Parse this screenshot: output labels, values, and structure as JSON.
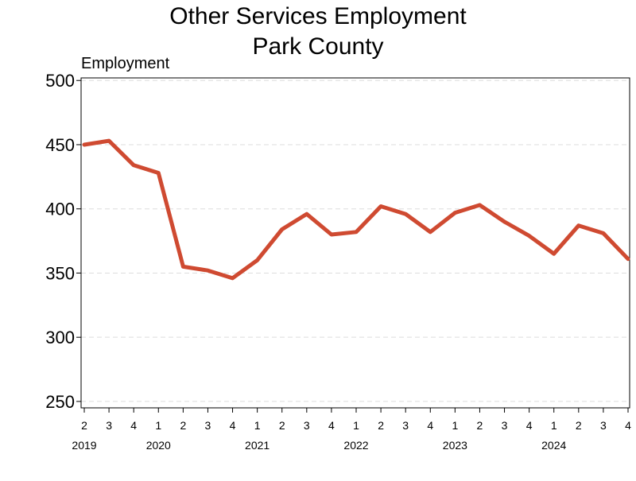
{
  "chart_data": {
    "type": "line",
    "title": "Other Services Employment",
    "subtitle": "Park County",
    "ylabel": "Employment",
    "xlabel": "",
    "ylim": [
      245,
      502
    ],
    "yticks": [
      250,
      300,
      350,
      400,
      450,
      500
    ],
    "grid": "horizontal dashed",
    "x": [
      "2019 Q2",
      "2019 Q3",
      "2019 Q4",
      "2020 Q1",
      "2020 Q2",
      "2020 Q3",
      "2020 Q4",
      "2021 Q1",
      "2021 Q2",
      "2021 Q3",
      "2021 Q4",
      "2022 Q1",
      "2022 Q2",
      "2022 Q3",
      "2022 Q4",
      "2023 Q1",
      "2023 Q2",
      "2023 Q3",
      "2023 Q4",
      "2024 Q1",
      "2024 Q2",
      "2024 Q3",
      "2024 Q4"
    ],
    "quarter_labels": [
      "2",
      "3",
      "4",
      "1",
      "2",
      "3",
      "4",
      "1",
      "2",
      "3",
      "4",
      "1",
      "2",
      "3",
      "4",
      "1",
      "2",
      "3",
      "4",
      "1",
      "2",
      "3",
      "4"
    ],
    "year_labels": [
      {
        "label": "2019",
        "at_index": 0
      },
      {
        "label": "2020",
        "at_index": 3
      },
      {
        "label": "2021",
        "at_index": 7
      },
      {
        "label": "2022",
        "at_index": 11
      },
      {
        "label": "2023",
        "at_index": 15
      },
      {
        "label": "2024",
        "at_index": 19
      }
    ],
    "series": [
      {
        "color": "#cf4a31",
        "values": [
          450,
          453,
          434,
          428,
          355,
          352,
          346,
          360,
          384,
          396,
          380,
          382,
          402,
          396,
          382,
          397,
          403,
          390,
          379,
          365,
          387,
          381,
          361
        ]
      }
    ]
  }
}
